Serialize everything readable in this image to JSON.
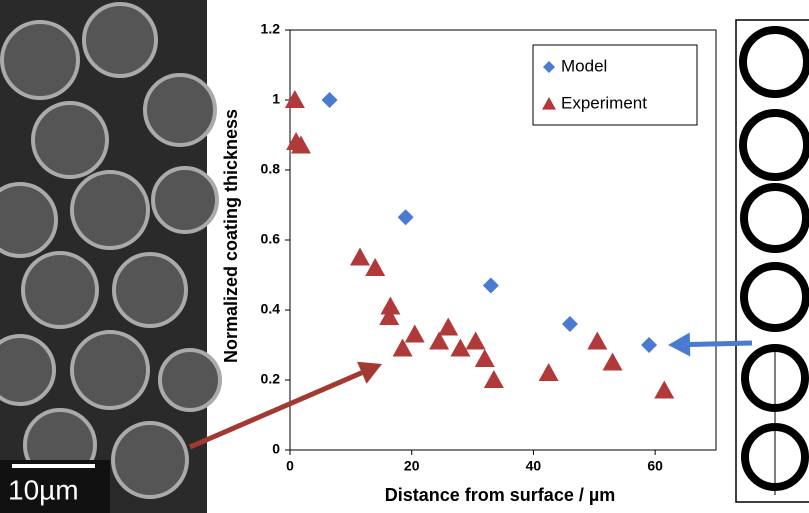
{
  "chart_data": {
    "type": "scatter",
    "x_label": "Distance from surface / µm",
    "y_label": "Normalized coating thickness",
    "xlim": [
      0,
      70
    ],
    "xticks": [
      0,
      20,
      40,
      60
    ],
    "ylim": [
      0,
      1.2
    ],
    "yticks": [
      0,
      0.2,
      0.4,
      0.6,
      0.8,
      1,
      1.2
    ],
    "legend": "top-right",
    "series": [
      {
        "name": "Model",
        "color": "#4a7bd0",
        "marker": "diamond",
        "x": [
          6.5,
          19,
          33,
          46,
          59
        ],
        "values": [
          1.0,
          0.665,
          0.47,
          0.36,
          0.3
        ]
      },
      {
        "name": "Experiment",
        "color": "#b03a3a",
        "marker": "triangle",
        "x": [
          0.8,
          1.0,
          1.8,
          11.5,
          14,
          16.5,
          16.3,
          18.5,
          20.5,
          24.5,
          26,
          28,
          30.5,
          32,
          33.5,
          42.5,
          50.5,
          53,
          61.5
        ],
        "values": [
          1.0,
          0.88,
          0.87,
          0.55,
          0.52,
          0.41,
          0.38,
          0.29,
          0.33,
          0.31,
          0.35,
          0.29,
          0.31,
          0.26,
          0.2,
          0.22,
          0.31,
          0.25,
          0.17
        ]
      }
    ]
  },
  "image": {
    "scale_bar": "10µm"
  }
}
